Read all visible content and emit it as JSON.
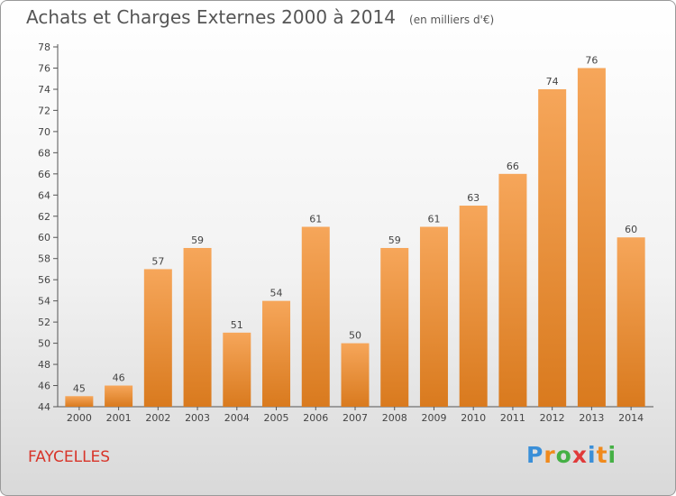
{
  "chart_data": {
    "type": "bar",
    "title": "Achats et Charges Externes 2000 à 2014",
    "unit": "(en milliers d'€)",
    "categories": [
      "2000",
      "2001",
      "2002",
      "2003",
      "2004",
      "2005",
      "2006",
      "2007",
      "2008",
      "2009",
      "2010",
      "2011",
      "2012",
      "2013",
      "2014"
    ],
    "values": [
      45,
      46,
      57,
      59,
      51,
      54,
      61,
      50,
      59,
      61,
      63,
      66,
      74,
      76,
      60
    ],
    "ylim": [
      44,
      78
    ],
    "yticks": [
      44,
      46,
      48,
      50,
      52,
      54,
      56,
      58,
      60,
      62,
      64,
      66,
      68,
      70,
      72,
      74,
      76,
      78
    ],
    "grid": false,
    "bar_color_top": "#f6a65a",
    "bar_color_bottom": "#d97a1e"
  },
  "commune": "FAYCELLES",
  "brand": {
    "text": "Proxiti",
    "letters": [
      {
        "ch": "P",
        "color": "#3a8fd8"
      },
      {
        "ch": "r",
        "color": "#f08a1c"
      },
      {
        "ch": "o",
        "color": "#45b045"
      },
      {
        "ch": "x",
        "color": "#e03a3a"
      },
      {
        "ch": "i",
        "color": "#3a8fd8"
      },
      {
        "ch": "t",
        "color": "#f08a1c"
      },
      {
        "ch": "i",
        "color": "#45b045"
      }
    ]
  }
}
